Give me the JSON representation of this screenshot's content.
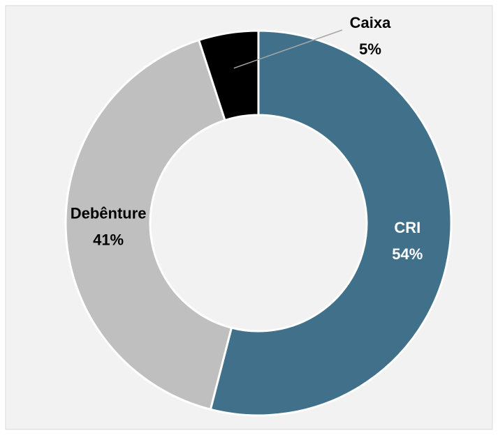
{
  "chart_data": {
    "type": "donut",
    "categories": [
      "CRI",
      "Debênture",
      "Caixa"
    ],
    "values": [
      54,
      41,
      5
    ],
    "value_labels": [
      "54%",
      "41%",
      "5%"
    ],
    "colors": [
      "#41718a",
      "#bfbfbf",
      "#000000"
    ]
  }
}
